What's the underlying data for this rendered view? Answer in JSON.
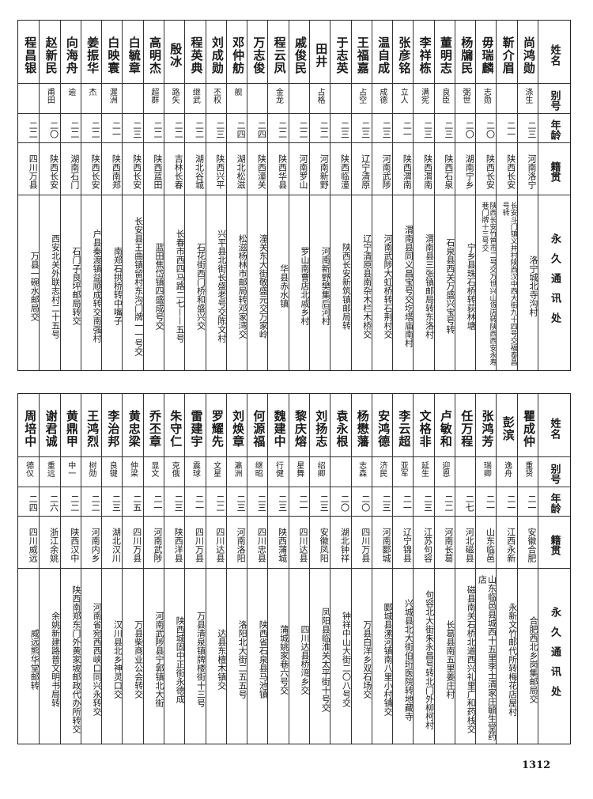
{
  "headers": {
    "name": "姓名",
    "alias": "别号",
    "age": "年龄",
    "origin": "籍贯",
    "address": "永久通讯处"
  },
  "top": [
    {
      "name": "尚鸿勋",
      "alias": "涤生",
      "age": "二三",
      "origin": "河南洛宁",
      "address": "洛宁城北寺沟村"
    },
    {
      "name": "靳介眉",
      "alias": "",
      "age": "二一",
      "origin": "陕西长安",
      "address": "长安斗门镇义井村陕西汉中西大街九十四号交福泰昌号转"
    },
    {
      "name": "毋瑞麟",
      "alias": "志勋",
      "age": "二〇",
      "origin": "陕西长安",
      "address": "陕西长安竹笆市二号交万世兴山货店转陕西西安永寿巷门牌十三号交"
    },
    {
      "name": "杨牖民",
      "alias": "弼世",
      "age": "二〇",
      "origin": "湖南宁乡",
      "address": "宁乡县珠石桥转荻林塘"
    },
    {
      "name": "董明志",
      "alias": "良臣",
      "age": "二三",
      "origin": "陕西石泉",
      "address": "石泉县西关万盛兴宝号转"
    },
    {
      "name": "李祥栋",
      "alias": "满宪",
      "age": "二三",
      "origin": "陕西渭南",
      "address": "渭南县三张镇邮局转东洛村"
    },
    {
      "name": "张彦铭",
      "alias": "立人",
      "age": "二一",
      "origin": "陕西渭南",
      "address": "渭南县同义昌宝号交圪塔庙南村"
    },
    {
      "name": "温自成",
      "alias": "成德",
      "age": "二三",
      "origin": "河南武陟",
      "address": "河南武陟大虹桥转石荆村交"
    },
    {
      "name": "王福嘉",
      "alias": "占空",
      "age": "二三",
      "origin": "辽宁清原",
      "address": "辽宁清原县南杂木栏木桥交"
    },
    {
      "name": "于志英",
      "alias": "",
      "age": "二三",
      "origin": "陕西临潼",
      "address": "陕西长安新筑镇邮局转"
    },
    {
      "name": "田井",
      "alias": "占格",
      "age": "二二",
      "origin": "河南新野",
      "address": "河南新野樊集后河村"
    },
    {
      "name": "戚俊民",
      "alias": "",
      "age": "二二",
      "origin": "河南罗山",
      "address": "罗山南曹店北戚乡村"
    },
    {
      "name": "程云凤",
      "alias": "金龙",
      "age": "二二",
      "origin": "陕西华县",
      "address": "华县赤水镇"
    },
    {
      "name": "万志俊",
      "alias": "",
      "age": "二四",
      "origin": "陕西潼关",
      "address": "潼关东大街敬盛元交万家岭"
    },
    {
      "name": "邓仲舫",
      "alias": "舰",
      "age": "二四",
      "origin": "湖北松滋",
      "address": "松滋杨林市邮局转邓家湾交"
    },
    {
      "name": "刘成勋",
      "alias": "丕权",
      "age": "二三",
      "origin": "陕西兴平",
      "address": "兴平县北街长盛老号交陈文村"
    },
    {
      "name": "程英典",
      "alias": "继武",
      "age": "二二",
      "origin": "湖北谷城",
      "address": "石花街西门桥和盛兴交"
    },
    {
      "name": "殷冰",
      "alias": "路矢",
      "age": "二二",
      "origin": "吉林长春",
      "address": "长春市西四马路二七——五号"
    },
    {
      "name": "高明杰",
      "alias": "超群",
      "age": "二二",
      "origin": "陕西蓝田",
      "address": "蓝田焦岱镇四盛成号交"
    },
    {
      "name": "白毓章",
      "alias": "",
      "age": "二三",
      "origin": "陕西长安",
      "address": "长安县王曲镇留村东沟门牌一一号交"
    },
    {
      "name": "白映寰",
      "alias": "渥洲",
      "age": "二一",
      "origin": "陕西南郑",
      "address": "南郑石拱桥转中嘴子"
    },
    {
      "name": "姜振华",
      "alias": "杰",
      "age": "二二",
      "origin": "陕西长安",
      "address": "户县秦渡镇益顺成转交南强村"
    },
    {
      "name": "向海舟",
      "alias": "逾",
      "age": "二二",
      "origin": "湖南石门",
      "address": "石门子良坪邮局转交"
    },
    {
      "name": "赵新民",
      "alias": "甫田",
      "age": "二〇",
      "origin": "陕西长安",
      "address": "西安北关外联志村二十五号"
    },
    {
      "name": "程昌银",
      "alias": "",
      "age": "二二",
      "origin": "四川万县",
      "address": "万县一碗水邮局交"
    }
  ],
  "bottom": [
    {
      "name": "瞿成仲",
      "alias": "重贤",
      "age": "二一",
      "origin": "安徽合肥",
      "address": "合肥西北乡岗集邮局交"
    },
    {
      "name": "彭滨",
      "alias": "逸舟",
      "age": "二一",
      "origin": "江西永新",
      "address": "永新文竹邮代所转梅花店屋村"
    },
    {
      "name": "张鸿芳",
      "alias": "瑞卿",
      "age": "二一",
      "origin": "山东临邑",
      "address": "山东临邑县城西十五里李士清家庄毓生堂药店"
    },
    {
      "name": "任万程",
      "alias": "",
      "age": "二七",
      "origin": "河北磁县",
      "address": "磁县南关石桥北道西兴礼里广和药栈交"
    },
    {
      "name": "卢敏和",
      "alias": "迎恩",
      "age": "二二",
      "origin": "河南长葛",
      "address": "长葛县南五里姜庄村"
    },
    {
      "name": "文格非",
      "alias": "延生",
      "age": "二三",
      "origin": "江苏句容",
      "address": "句容北大街朱永昌号转北门外柳柯村"
    },
    {
      "name": "李云超",
      "alias": "亚军",
      "age": "二一",
      "origin": "辽宁锦县",
      "address": "兴城县北大街伯珩医院转地藏寺"
    },
    {
      "name": "安鸿德",
      "alias": "济民",
      "age": "二三",
      "origin": "河南郾城",
      "address": "郾城县漯河镇南八里小村铺交"
    },
    {
      "name": "杨懋藩",
      "alias": "志森",
      "age": "二〇",
      "origin": "四川万县",
      "address": "万县白洋乡双石场交"
    },
    {
      "name": "袁永根",
      "alias": "",
      "age": "二〇",
      "origin": "湖北钟祥",
      "address": "钟祥中山大街二〇八号交"
    },
    {
      "name": "刘扬志",
      "alias": "绍卿",
      "age": "二三",
      "origin": "安徽凤阳",
      "address": "凤阳县临淮关太平街十号交"
    },
    {
      "name": "黎庆熔",
      "alias": "星舞",
      "age": "二一",
      "origin": "四川达县",
      "address": "四川达县桥湾乡交"
    },
    {
      "name": "魏建中",
      "alias": "行健",
      "age": "二三",
      "origin": "陕西蒲城",
      "address": "蒲城姚家巷六号交"
    },
    {
      "name": "何源福",
      "alias": "继昭",
      "age": "二三",
      "origin": "四川忠县",
      "address": "陕西省石泉县马池镇"
    },
    {
      "name": "刘焕章",
      "alias": "瀛洲",
      "age": "二三",
      "origin": "河南洛阳",
      "address": "洛阳北大街二五五号"
    },
    {
      "name": "罗耀先",
      "alias": "文星",
      "age": "二二",
      "origin": "四川达县",
      "address": "达县东檀木镇交"
    },
    {
      "name": "雷建宇",
      "alias": "震球",
      "age": "二一",
      "origin": "四川万县",
      "address": "万县清泉镇牌楼街十三号"
    },
    {
      "name": "朱守仁",
      "alias": "克俄",
      "age": "二三",
      "origin": "陕西洋县",
      "address": "陕西城固中正街永德成"
    },
    {
      "name": "乔丕章",
      "alias": "显文",
      "age": "二一",
      "origin": "河南武陟",
      "address": "河南武陟县宁郭镇北大街"
    },
    {
      "name": "黄忠梁",
      "alias": "仲梁",
      "age": "二五",
      "origin": "四川万县",
      "address": "万县柴商业公会转交"
    },
    {
      "name": "李治邦",
      "alias": "良键",
      "age": "二三",
      "origin": "湖北汉川",
      "address": "汉川县北乡神灵口交"
    },
    {
      "name": "王鸿烈",
      "alias": "树勋",
      "age": "二二",
      "origin": "河南内乡",
      "address": "河南省宛西西峡口同兴永转交"
    },
    {
      "name": "黄鼎甲",
      "alias": "中一",
      "age": "二二",
      "origin": "陕西汉中",
      "address": "陕西南郑东门外黄家坡邮政代办所转交"
    },
    {
      "name": "谢君诚",
      "alias": "重远",
      "age": "二六",
      "origin": "浙江余姚",
      "address": "余姚新建路普文明书局转"
    },
    {
      "name": "周培中",
      "alias": "德仪",
      "age": "二四",
      "origin": "四川威远",
      "address": "威远熊华堂邮转"
    }
  ],
  "page_number": "1312"
}
